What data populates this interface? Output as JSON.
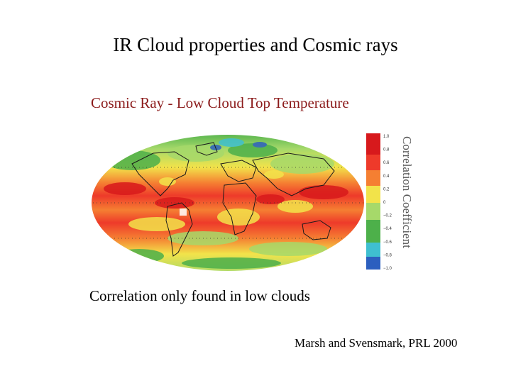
{
  "slide": {
    "title": "IR Cloud properties and Cosmic rays",
    "subtitle": "Cosmic Ray - Low Cloud Top Temperature",
    "caption": "Correlation only found in low clouds",
    "credit": "Marsh and Svensmark, PRL 2000"
  },
  "figure": {
    "colorbar_title": "Correlation Coefficient",
    "colorbar_ticks": [
      "1.0",
      "0.8",
      "0.6",
      "0.4",
      "0.2",
      "0",
      "−0.2",
      "−0.4",
      "−0.6",
      "−0.8",
      "−1.0"
    ],
    "colors": {
      "dark_red": "#d7191c",
      "red": "#ee3a2a",
      "orange": "#f57f32",
      "yellow": "#f2e34a",
      "light_green": "#a6d96a",
      "green": "#4db04a",
      "cyan": "#3fbfd0",
      "blue": "#2c5fbf",
      "white": "#ffffff",
      "subtitle": "#8b1a1a"
    }
  }
}
